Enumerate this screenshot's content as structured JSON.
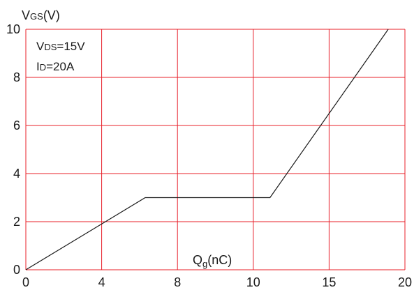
{
  "chart_data": {
    "type": "line",
    "ylabel": {
      "main": "V",
      "sub": "GS",
      "unit": "(V)"
    },
    "xlabel": {
      "main": "Q",
      "sub": "g",
      "unit": "(nC)"
    },
    "conditions": [
      {
        "main": "V",
        "sub": "DS",
        "value": "=15V"
      },
      {
        "main": "I",
        "sub": "D",
        "value": "=20A"
      }
    ],
    "x_ticks": [
      "0",
      "4",
      "8",
      "10",
      "15",
      "20"
    ],
    "y_ticks": [
      "0",
      "2",
      "4",
      "6",
      "8",
      "10"
    ],
    "ylim": [
      0,
      10
    ],
    "grid": true,
    "series": [
      {
        "points": [
          [
            0,
            0
          ],
          [
            6.3,
            3.0
          ],
          [
            11.1,
            3.0
          ],
          [
            18.9,
            10.0
          ]
        ]
      }
    ],
    "colors": {
      "grid": "#e8202a",
      "line": "#1a1a1a",
      "text": "#1a1a1a"
    }
  }
}
